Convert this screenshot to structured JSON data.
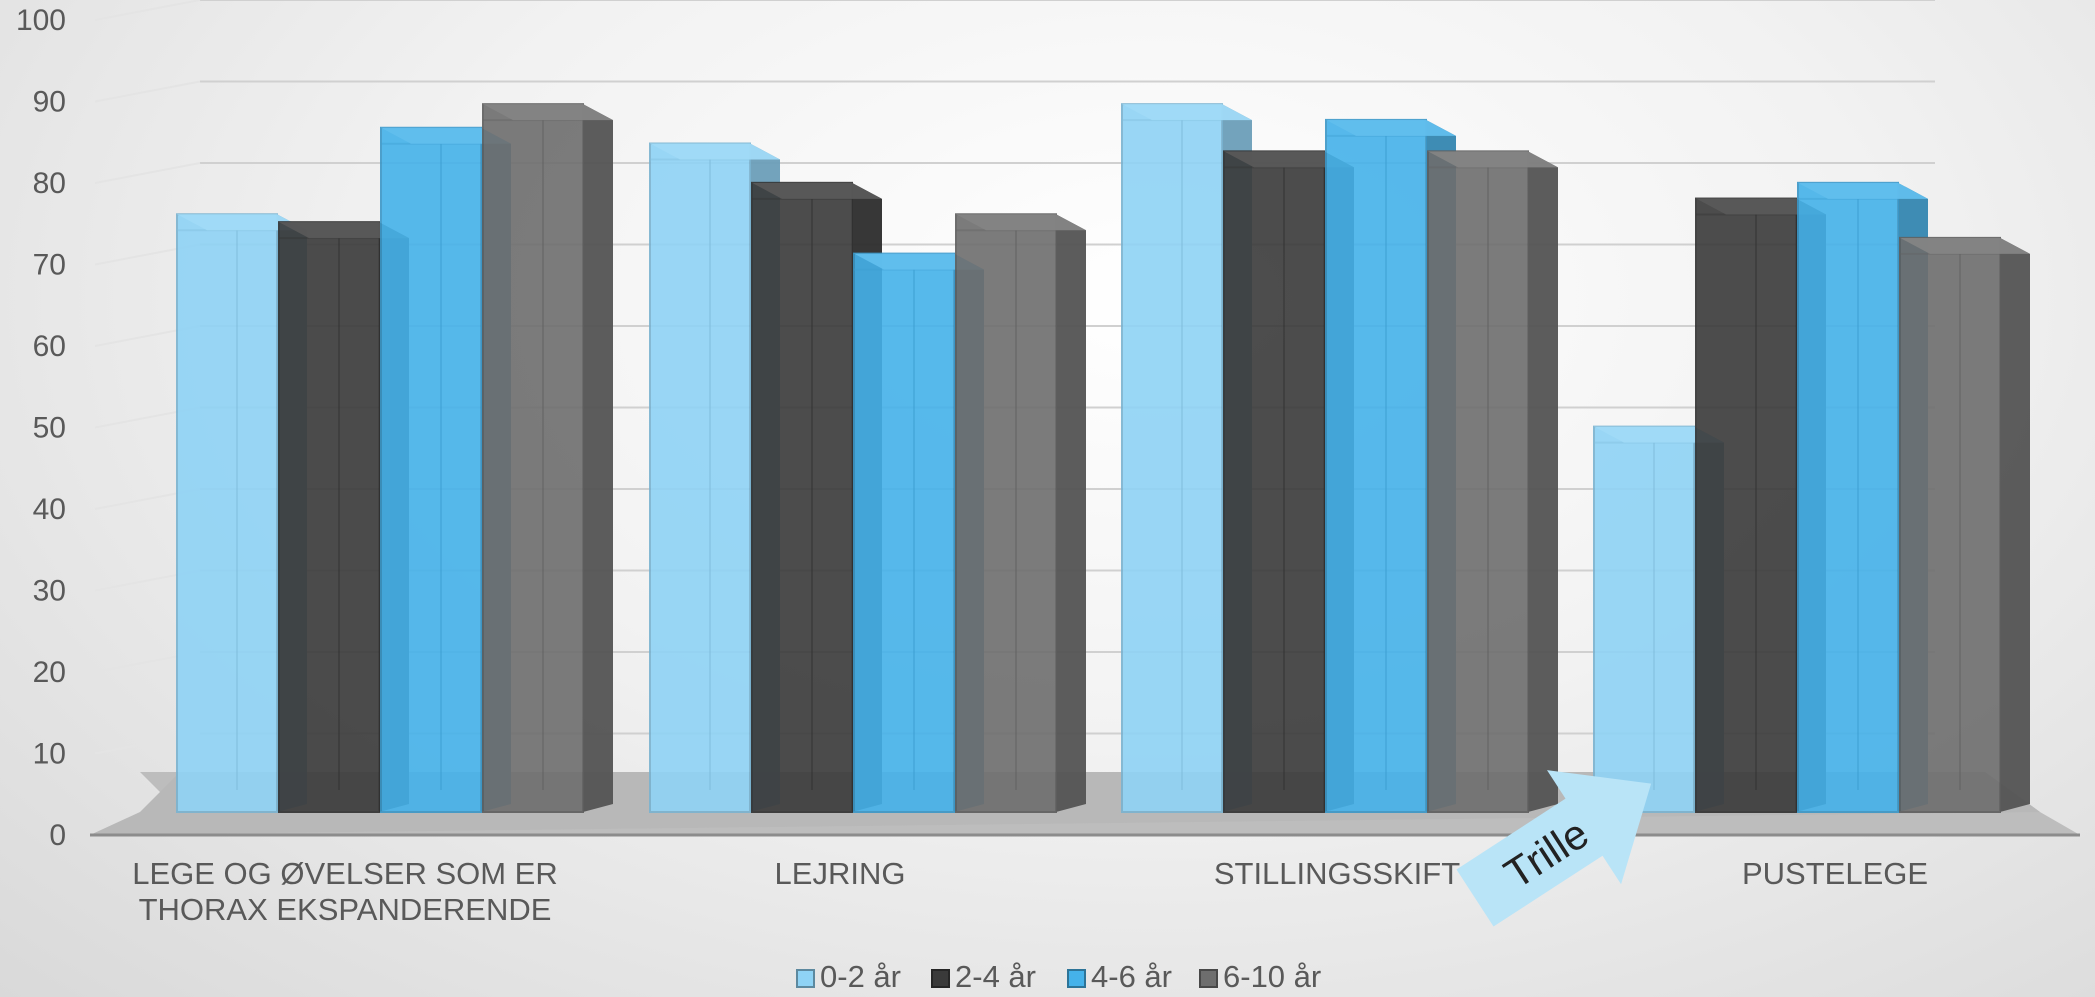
{
  "chart_data": {
    "type": "bar",
    "title": "",
    "xlabel": "",
    "ylabel": "",
    "ylim": [
      0,
      100
    ],
    "yticks": [
      0,
      10,
      20,
      30,
      40,
      50,
      60,
      70,
      80,
      90,
      100
    ],
    "grid": true,
    "legend_position": "bottom",
    "categories": [
      [
        "LEGE OG ØVELSER SOM ER",
        "THORAX EKSPANDERENDE"
      ],
      [
        "LEJRING"
      ],
      [
        "STILLINGSSKIFT"
      ],
      [
        "PUSTELEGE"
      ]
    ],
    "series": [
      {
        "name": "0-2 år",
        "color": "#8fd3f5",
        "values": [
          76,
          85,
          90,
          49
        ]
      },
      {
        "name": "2-4 år",
        "color": "#3a3a3a",
        "values": [
          75,
          80,
          84,
          78
        ]
      },
      {
        "name": "4-6 år",
        "color": "#45b2ea",
        "values": [
          87,
          71,
          88,
          80
        ]
      },
      {
        "name": "6-10 år",
        "color": "#6e6e6e",
        "values": [
          90,
          76,
          84,
          73
        ]
      }
    ],
    "annotation": {
      "text": "Trille",
      "color": "#b9e4f7"
    }
  }
}
